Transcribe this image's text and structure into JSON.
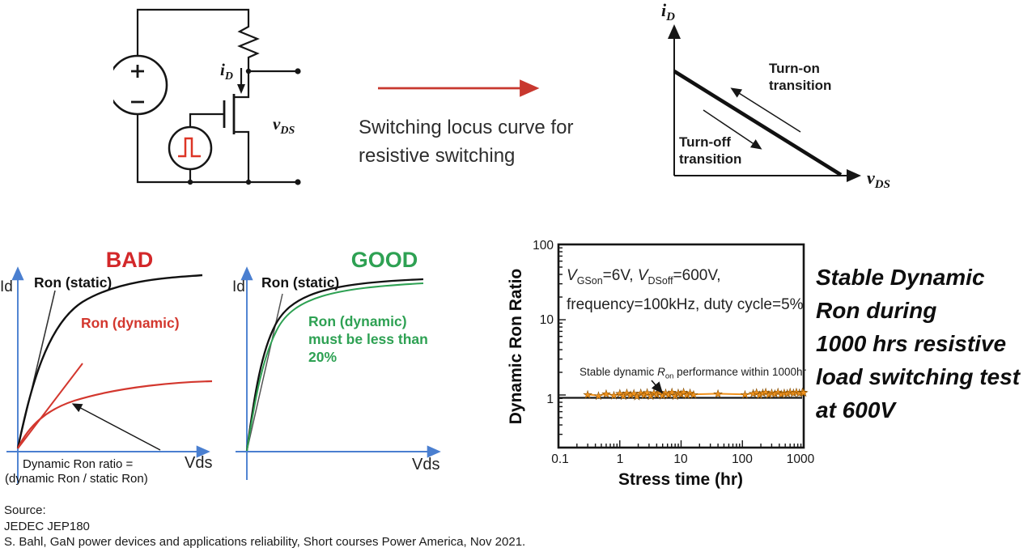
{
  "colors": {
    "red": "#c8382f",
    "green": "#2ea153",
    "axis_blue": "#4a7fd0",
    "orange": "#f0921e",
    "ink": "#161616"
  },
  "circuit": {
    "current_label": {
      "base": "i",
      "sub": "D"
    },
    "voltage_label": {
      "base": "v",
      "sub": "DS"
    }
  },
  "caption": {
    "line1": "Switching locus curve for",
    "line2": "resistive switching"
  },
  "locus_plot": {
    "y_label": {
      "base": "i",
      "sub": "D"
    },
    "x_label": {
      "base": "v",
      "sub": "DS"
    },
    "turn_on": {
      "line1": "Turn-on",
      "line2": "transition"
    },
    "turn_off": {
      "line1": "Turn-off",
      "line2": "transition"
    }
  },
  "bad_plot": {
    "title": "BAD",
    "y_label": "Id",
    "x_label": "Vds",
    "static_label": "Ron (static)",
    "dynamic_label": "Ron (dynamic)",
    "note_line1": "Dynamic Ron ratio =",
    "note_line2": "(dynamic Ron / static Ron)"
  },
  "good_plot": {
    "title": "GOOD",
    "y_label": "Id",
    "x_label": "Vds",
    "static_label": "Ron (static)",
    "dynamic_line1": "Ron (dynamic)",
    "dynamic_line2": "must be less than",
    "dynamic_line3": "20%"
  },
  "chart_data": {
    "type": "scatter",
    "title": "",
    "xlabel": "Stress time (hr)",
    "ylabel": "Dynamic Ron Ratio",
    "xscale": "log",
    "yscale": "log",
    "xlim": [
      0.1,
      1000
    ],
    "ylim": [
      0.2,
      100
    ],
    "x_ticks": [
      "0.1",
      "1",
      "10",
      "100",
      "1000"
    ],
    "y_ticks": [
      "1",
      "10",
      "100"
    ],
    "grid": false,
    "conditions": {
      "v1": "V",
      "sub1": "GSon",
      "eq1": "=6V, ",
      "v2": "V",
      "sub2": "DSoff",
      "eq2": "=600V,",
      "line2": "frequency=100kHz, duty cycle=5%"
    },
    "annotation": {
      "pre": "Stable dynamic ",
      "r": "R",
      "sub": "on",
      "post": " performance within 1000hr"
    },
    "series": [
      {
        "name": "Dynamic Ron ratio",
        "marker": "star",
        "color": "#f0921e",
        "x": [
          0.3,
          0.45,
          0.6,
          0.8,
          1.0,
          1.15,
          1.3,
          1.5,
          1.7,
          1.9,
          2.2,
          2.5,
          2.8,
          3.2,
          3.6,
          4.0,
          4.5,
          5.0,
          5.6,
          6.3,
          7.1,
          8.0,
          9.0,
          10,
          11,
          12.5,
          14,
          16,
          40,
          110,
          150,
          170,
          190,
          215,
          240,
          270,
          300,
          340,
          380,
          430,
          480,
          540,
          600,
          680,
          760,
          850,
          950,
          1000
        ],
        "y": [
          1.02,
          0.98,
          1.04,
          0.99,
          1.05,
          0.98,
          1.07,
          1.0,
          1.05,
          0.97,
          1.07,
          1.0,
          1.08,
          0.98,
          1.06,
          1.01,
          1.09,
          0.99,
          1.07,
          1.02,
          1.09,
          0.98,
          1.07,
          1.03,
          1.09,
          1.0,
          1.07,
          1.02,
          1.04,
          1.02,
          1.05,
          1.08,
          1.0,
          1.06,
          1.09,
          1.02,
          1.07,
          1.04,
          1.09,
          1.03,
          1.07,
          1.05,
          1.1,
          1.06,
          1.09,
          1.07,
          1.1,
          1.08
        ]
      }
    ]
  },
  "headline": {
    "lines": [
      "Stable Dynamic",
      "Ron during",
      "1000 hrs resistive",
      "load switching test",
      "at 600V"
    ]
  },
  "source": {
    "lines": [
      "Source:",
      "JEDEC JEP180",
      "S. Bahl, GaN power devices and applications reliability, Short courses Power America, Nov 2021."
    ]
  }
}
